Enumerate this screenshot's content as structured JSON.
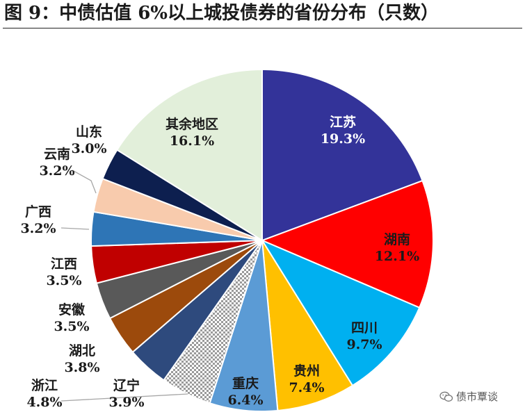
{
  "figure_title": "图 9：中债估值 6%以上城投债券的省份分布（只数）",
  "watermark": "债市覃谈",
  "chart_data": {
    "type": "pie",
    "title": "图 9：中债估值 6%以上城投债券的省份分布（只数）",
    "start_angle_deg": 0,
    "direction": "clockwise",
    "slices": [
      {
        "label": "江苏",
        "value": 19.3,
        "display": "19.3%",
        "color": "#333399",
        "pattern": "solid",
        "label_color": "#ffffff"
      },
      {
        "label": "湖南",
        "value": 12.1,
        "display": "12.1%",
        "color": "#ff0000",
        "pattern": "solid",
        "label_color": "#1a1a1a"
      },
      {
        "label": "四川",
        "value": 9.7,
        "display": "9.7%",
        "color": "#00b0f0",
        "pattern": "solid",
        "label_color": "#1a1a1a"
      },
      {
        "label": "贵州",
        "value": 7.4,
        "display": "7.4%",
        "color": "#ffc000",
        "pattern": "solid",
        "label_color": "#1a1a1a"
      },
      {
        "label": "重庆",
        "value": 6.4,
        "display": "6.4%",
        "color": "#5b9bd5",
        "pattern": "solid",
        "label_color": "#1a1a1a"
      },
      {
        "label": "浙江",
        "value": 4.8,
        "display": "4.8%",
        "color": "#b8b8b8",
        "pattern": "checker",
        "label_color": "#1a1a1a"
      },
      {
        "label": "辽宁",
        "value": 3.9,
        "display": "3.9%",
        "color": "#2e4a7d",
        "pattern": "solid",
        "label_color": "#1a1a1a"
      },
      {
        "label": "湖北",
        "value": 3.8,
        "display": "3.8%",
        "color": "#9c4a0c",
        "pattern": "solid",
        "label_color": "#1a1a1a"
      },
      {
        "label": "安徽",
        "value": 3.5,
        "display": "3.5%",
        "color": "#595959",
        "pattern": "solid",
        "label_color": "#1a1a1a"
      },
      {
        "label": "江西",
        "value": 3.5,
        "display": "3.5%",
        "color": "#c00000",
        "pattern": "solid",
        "label_color": "#1a1a1a"
      },
      {
        "label": "广西",
        "value": 3.2,
        "display": "3.2%",
        "color": "#2e75b6",
        "pattern": "solid",
        "label_color": "#1a1a1a"
      },
      {
        "label": "云南",
        "value": 3.2,
        "display": "3.2%",
        "color": "#f8cbad",
        "pattern": "solid",
        "label_color": "#1a1a1a"
      },
      {
        "label": "山东",
        "value": 3.0,
        "display": "3.0%",
        "color": "#0d1f4f",
        "pattern": "solid",
        "label_color": "#1a1a1a"
      },
      {
        "label": "其余地区",
        "value": 16.1,
        "display": "16.1%",
        "color": "#e2efda",
        "pattern": "solid",
        "label_color": "#1a1a1a"
      }
    ]
  }
}
